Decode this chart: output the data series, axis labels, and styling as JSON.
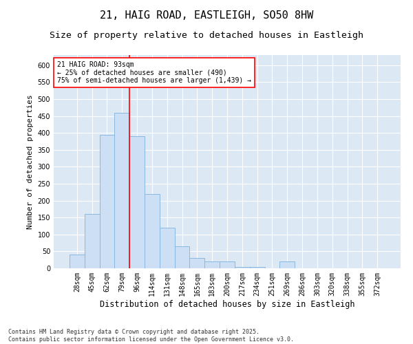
{
  "title": "21, HAIG ROAD, EASTLEIGH, SO50 8HW",
  "subtitle": "Size of property relative to detached houses in Eastleigh",
  "xlabel": "Distribution of detached houses by size in Eastleigh",
  "ylabel": "Number of detached properties",
  "categories": [
    "28sqm",
    "45sqm",
    "62sqm",
    "79sqm",
    "96sqm",
    "114sqm",
    "131sqm",
    "148sqm",
    "165sqm",
    "183sqm",
    "200sqm",
    "217sqm",
    "234sqm",
    "251sqm",
    "269sqm",
    "286sqm",
    "303sqm",
    "320sqm",
    "338sqm",
    "355sqm",
    "372sqm"
  ],
  "values": [
    40,
    160,
    395,
    460,
    390,
    220,
    120,
    65,
    30,
    20,
    20,
    5,
    5,
    0,
    20,
    0,
    0,
    0,
    0,
    0,
    0
  ],
  "bar_color": "#ccdff5",
  "bar_edge_color": "#89b8e0",
  "vline_position": 3.5,
  "vline_color": "red",
  "annotation_text": "21 HAIG ROAD: 93sqm\n← 25% of detached houses are smaller (490)\n75% of semi-detached houses are larger (1,439) →",
  "annotation_box_color": "white",
  "annotation_box_edge_color": "red",
  "ylim": [
    0,
    630
  ],
  "yticks": [
    0,
    50,
    100,
    150,
    200,
    250,
    300,
    350,
    400,
    450,
    500,
    550,
    600
  ],
  "background_color": "#dde8f5",
  "grid_color": "white",
  "footer": "Contains HM Land Registry data © Crown copyright and database right 2025.\nContains public sector information licensed under the Open Government Licence v3.0.",
  "title_fontsize": 11,
  "subtitle_fontsize": 9.5,
  "xlabel_fontsize": 8.5,
  "ylabel_fontsize": 8,
  "tick_fontsize": 7,
  "annot_fontsize": 7,
  "footer_fontsize": 6
}
